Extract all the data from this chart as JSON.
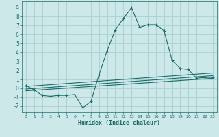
{
  "xlabel": "Humidex (Indice chaleur)",
  "background_color": "#cce8e8",
  "grid_color": "#aad0d0",
  "line_color": "#1a6b6b",
  "xlim": [
    -0.5,
    23.5
  ],
  "ylim": [
    -2.7,
    9.7
  ],
  "xticks": [
    0,
    1,
    2,
    3,
    4,
    5,
    6,
    7,
    8,
    9,
    10,
    11,
    12,
    13,
    14,
    15,
    16,
    17,
    18,
    19,
    20,
    21,
    22,
    23
  ],
  "yticks": [
    -2,
    -1,
    0,
    1,
    2,
    3,
    4,
    5,
    6,
    7,
    8,
    9
  ],
  "curve1_x": [
    0,
    1,
    2,
    3,
    4,
    5,
    6,
    7,
    8,
    9,
    10,
    11,
    12,
    13,
    14,
    15,
    16,
    17,
    18,
    19,
    20,
    21,
    22,
    23
  ],
  "curve1_y": [
    0.3,
    -0.2,
    -0.8,
    -0.9,
    -0.8,
    -0.8,
    -0.7,
    -2.2,
    -1.5,
    1.5,
    4.2,
    6.5,
    7.8,
    9.0,
    6.8,
    7.1,
    7.1,
    6.4,
    3.1,
    2.2,
    2.1,
    1.1,
    1.2,
    1.2
  ],
  "curve2_x": [
    0,
    23
  ],
  "curve2_y": [
    -0.3,
    1.1
  ],
  "curve3_x": [
    0,
    23
  ],
  "curve3_y": [
    -0.1,
    1.4
  ],
  "curve4_x": [
    0,
    23
  ],
  "curve4_y": [
    0.2,
    1.7
  ]
}
